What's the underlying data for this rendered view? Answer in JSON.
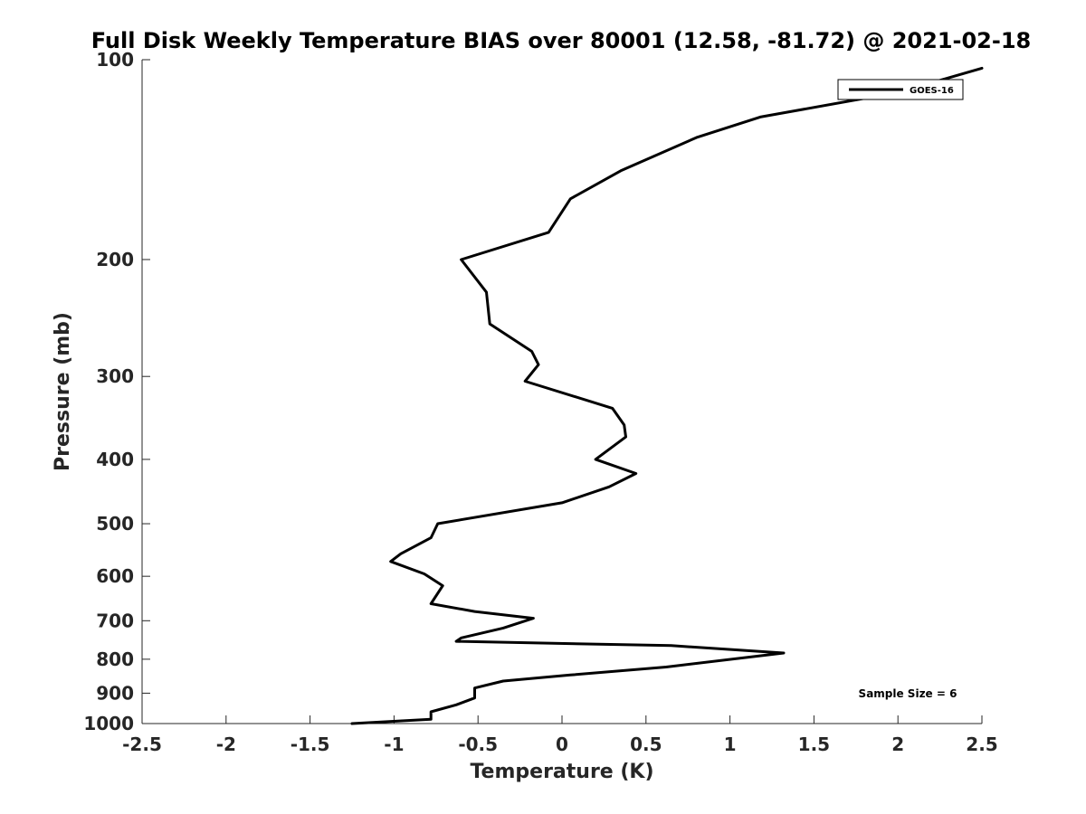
{
  "chart_data": {
    "type": "line",
    "title": "Full Disk Weekly Temperature BIAS over 80001 (12.58, -81.72) @ 2021-02-18",
    "xlabel": "Temperature (K)",
    "ylabel": "Pressure (mb)",
    "xlim": [
      -2.5,
      2.5
    ],
    "ylim": [
      100,
      1000
    ],
    "y_scale": "log",
    "y_reversed": true,
    "grid": false,
    "x_ticks": [
      "-2.5",
      "-2",
      "-1.5",
      "-1",
      "-0.5",
      "0",
      "0.5",
      "1",
      "1.5",
      "2",
      "2.5"
    ],
    "y_ticks": [
      "100",
      "200",
      "300",
      "400",
      "500",
      "600",
      "700",
      "800",
      "900",
      "1000"
    ],
    "legend_position": "top-right",
    "annotation": "Sample Size = 6",
    "series": [
      {
        "name": "GOES-16",
        "color": "#000000",
        "points": [
          {
            "x": 2.5,
            "y": 103
          },
          {
            "x": 2.0,
            "y": 112
          },
          {
            "x": 1.18,
            "y": 122
          },
          {
            "x": 0.8,
            "y": 131
          },
          {
            "x": 0.35,
            "y": 147
          },
          {
            "x": 0.05,
            "y": 162
          },
          {
            "x": -0.08,
            "y": 182
          },
          {
            "x": -0.6,
            "y": 200
          },
          {
            "x": -0.45,
            "y": 224
          },
          {
            "x": -0.43,
            "y": 250
          },
          {
            "x": -0.18,
            "y": 275
          },
          {
            "x": -0.14,
            "y": 288
          },
          {
            "x": -0.22,
            "y": 305
          },
          {
            "x": 0.3,
            "y": 335
          },
          {
            "x": 0.37,
            "y": 355
          },
          {
            "x": 0.38,
            "y": 370
          },
          {
            "x": 0.2,
            "y": 400
          },
          {
            "x": 0.44,
            "y": 420
          },
          {
            "x": 0.28,
            "y": 440
          },
          {
            "x": 0.0,
            "y": 465
          },
          {
            "x": -0.74,
            "y": 500
          },
          {
            "x": -0.78,
            "y": 525
          },
          {
            "x": -0.96,
            "y": 555
          },
          {
            "x": -1.02,
            "y": 570
          },
          {
            "x": -0.82,
            "y": 595
          },
          {
            "x": -0.71,
            "y": 620
          },
          {
            "x": -0.78,
            "y": 660
          },
          {
            "x": -0.52,
            "y": 678
          },
          {
            "x": -0.17,
            "y": 694
          },
          {
            "x": -0.35,
            "y": 718
          },
          {
            "x": -0.6,
            "y": 743
          },
          {
            "x": -0.63,
            "y": 752
          },
          {
            "x": 0.65,
            "y": 763
          },
          {
            "x": 1.32,
            "y": 783
          },
          {
            "x": 0.62,
            "y": 822
          },
          {
            "x": 0.05,
            "y": 845
          },
          {
            "x": -0.35,
            "y": 863
          },
          {
            "x": -0.52,
            "y": 884
          },
          {
            "x": -0.52,
            "y": 915
          },
          {
            "x": -0.63,
            "y": 937
          },
          {
            "x": -0.78,
            "y": 960
          },
          {
            "x": -0.78,
            "y": 985
          },
          {
            "x": -1.25,
            "y": 1000
          }
        ]
      }
    ]
  }
}
